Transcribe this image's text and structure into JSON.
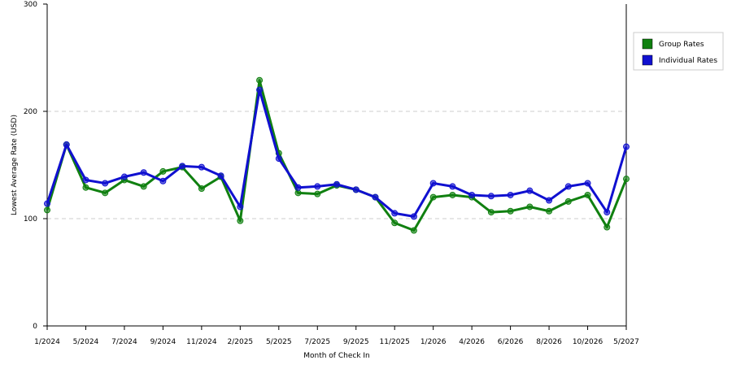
{
  "chart_data": {
    "type": "line",
    "x_label": "Month of Check In",
    "y_label": "Lowest Average Rate (USD)",
    "categories": [
      "1/2024",
      null,
      "5/2024",
      null,
      "7/2024",
      null,
      "9/2024",
      null,
      "11/2024",
      null,
      "2/2025",
      null,
      "5/2025",
      null,
      "7/2025",
      null,
      "9/2025",
      null,
      "11/2025",
      null,
      "1/2026",
      null,
      "4/2026",
      null,
      "6/2026",
      null,
      "8/2026",
      null,
      "10/2026",
      null,
      "5/2027"
    ],
    "series": [
      {
        "name": "Group Rates",
        "color": "#108010",
        "values": [
          108,
          169,
          129,
          124,
          136,
          130,
          144,
          148,
          128,
          139,
          98,
          229,
          161,
          124,
          123,
          131,
          127,
          120,
          96,
          89,
          120,
          122,
          120,
          106,
          107,
          111,
          107,
          116,
          122,
          92,
          137
        ]
      },
      {
        "name": "Individual Rates",
        "color": "#1010d0",
        "values": [
          114,
          169,
          136,
          133,
          139,
          143,
          135,
          149,
          148,
          140,
          111,
          220,
          156,
          129,
          130,
          132,
          127,
          120,
          105,
          102,
          133,
          130,
          122,
          121,
          122,
          126,
          117,
          130,
          133,
          106,
          167
        ]
      }
    ],
    "ylim": [
      0,
      300
    ],
    "yticks": [
      0,
      100,
      200,
      300
    ],
    "grid": true
  }
}
